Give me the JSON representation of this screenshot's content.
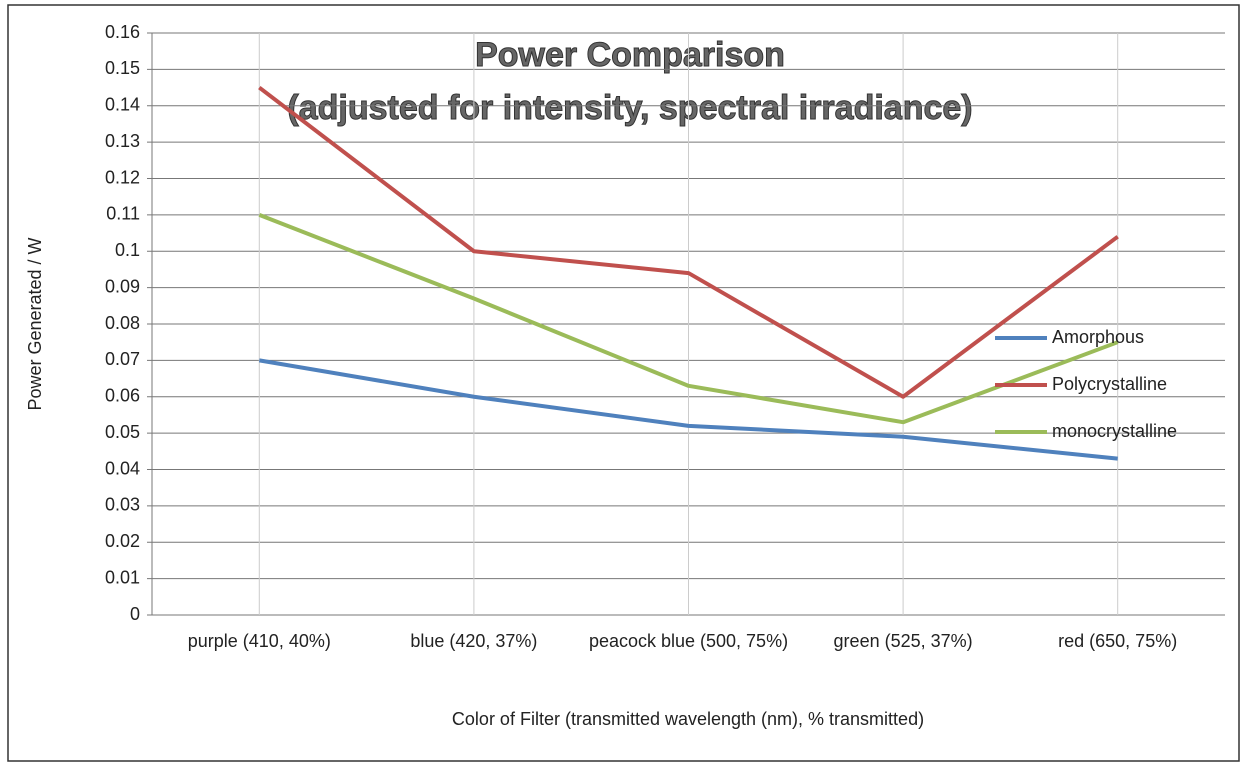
{
  "chart_data": {
    "type": "line",
    "title": "Power Comparison",
    "subtitle": "(adjusted for intensity, spectral irradiance)",
    "x_label": "Color of Filter (transmitted wavelength (nm), % transmitted)",
    "y_label": "Power Generated / W",
    "categories": [
      "purple (410, 40%)",
      "blue (420, 37%)",
      "peacock blue (500, 75%)",
      "green (525, 37%)",
      "red (650, 75%)"
    ],
    "series": [
      {
        "name": "Amorphous",
        "color": "#4f81bd",
        "values": [
          0.07,
          0.06,
          0.052,
          0.049,
          0.043
        ]
      },
      {
        "name": "Polycrystalline",
        "color": "#c0504d",
        "values": [
          0.145,
          0.1,
          0.094,
          0.06,
          0.104
        ]
      },
      {
        "name": "monocrystalline",
        "color": "#9bbb59",
        "values": [
          0.11,
          0.087,
          0.063,
          0.053,
          0.075
        ]
      }
    ],
    "ylim": [
      0,
      0.16
    ],
    "yticks": [
      0,
      0.01,
      0.02,
      0.03,
      0.04,
      0.05,
      0.06,
      0.07,
      0.08,
      0.09,
      0.1,
      0.11,
      0.12,
      0.13,
      0.14,
      0.15,
      0.16
    ],
    "grid": true,
    "legend": "right"
  }
}
